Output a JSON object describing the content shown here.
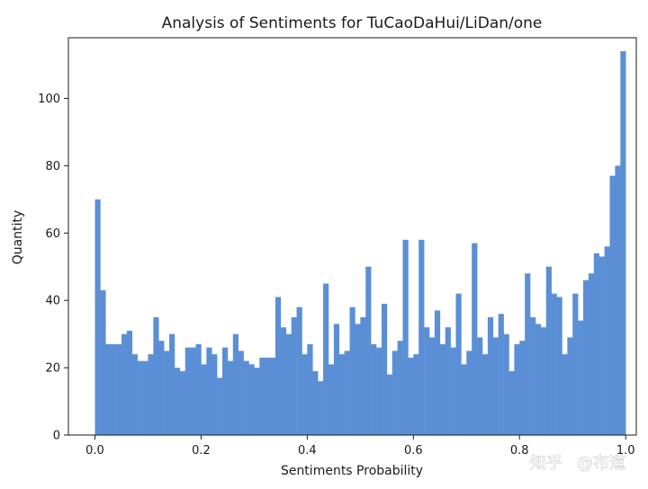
{
  "chart_data": {
    "type": "bar",
    "title": "Analysis of Sentiments for TuCaoDaHui/LiDan/one",
    "xlabel": "Sentiments Probability",
    "ylabel": "Quantity",
    "xlim": [
      -0.05,
      1.02
    ],
    "ylim": [
      0,
      118
    ],
    "x_ticks": [
      {
        "value": 0.0,
        "label": "0.0"
      },
      {
        "value": 0.2,
        "label": "0.2"
      },
      {
        "value": 0.4,
        "label": "0.4"
      },
      {
        "value": 0.6,
        "label": "0.6"
      },
      {
        "value": 0.8,
        "label": "0.8"
      },
      {
        "value": 1.0,
        "label": "1.0"
      }
    ],
    "y_ticks": [
      {
        "value": 0,
        "label": "0"
      },
      {
        "value": 20,
        "label": "20"
      },
      {
        "value": 40,
        "label": "40"
      },
      {
        "value": 60,
        "label": "60"
      },
      {
        "value": 80,
        "label": "80"
      },
      {
        "value": 100,
        "label": "100"
      }
    ],
    "bin_start": 0.0,
    "bin_width": 0.01,
    "values": [
      70,
      43,
      27,
      27,
      27,
      30,
      31,
      24,
      22,
      22,
      24,
      35,
      28,
      25,
      30,
      20,
      19,
      26,
      26,
      27,
      21,
      26,
      24,
      17,
      26,
      22,
      30,
      25,
      22,
      21,
      20,
      23,
      23,
      23,
      41,
      32,
      30,
      35,
      38,
      24,
      27,
      19,
      16,
      45,
      21,
      33,
      24,
      25,
      38,
      33,
      35,
      50,
      27,
      26,
      39,
      18,
      25,
      28,
      58,
      23,
      24,
      58,
      32,
      29,
      37,
      27,
      32,
      26,
      42,
      21,
      25,
      57,
      29,
      24,
      35,
      29,
      36,
      30,
      19,
      27,
      28,
      48,
      35,
      33,
      32,
      50,
      42,
      41,
      24,
      29,
      42,
      34,
      46,
      48,
      54,
      53,
      56,
      77,
      80,
      114
    ],
    "bar_color": "#5b8fd5",
    "grid": false
  },
  "watermark": {
    "logo_text": "知乎",
    "author": "@布道"
  }
}
